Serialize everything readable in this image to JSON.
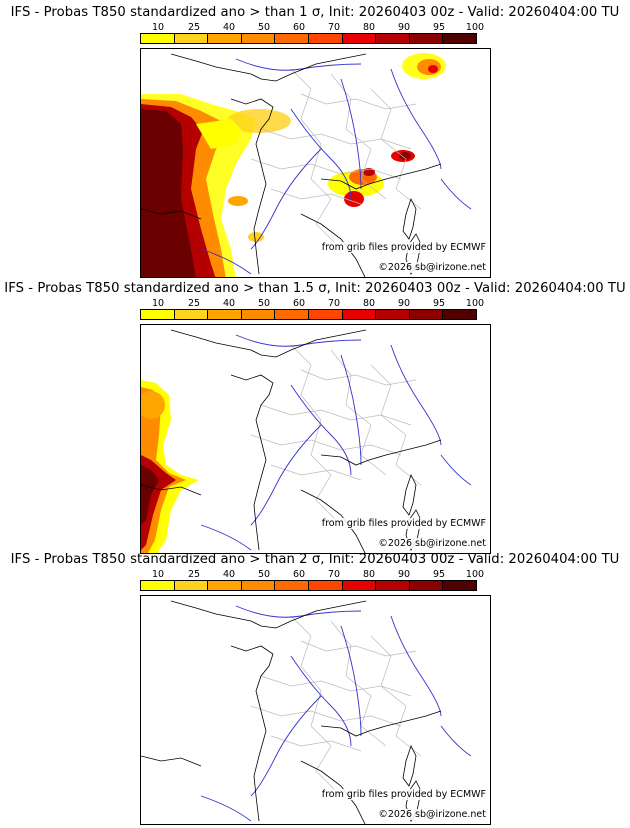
{
  "colorbar": {
    "levels": [
      "10",
      "25",
      "40",
      "50",
      "60",
      "70",
      "80",
      "90",
      "95",
      "100"
    ],
    "colors": [
      "#ffff00",
      "#ffd21e",
      "#ffa500",
      "#ff8c00",
      "#ff6a00",
      "#ff4500",
      "#e60000",
      "#b40000",
      "#8c0000",
      "#500000"
    ]
  },
  "panels": [
    {
      "title": "IFS - Probas T850  standardized ano > than 1 σ, Init: 20260403 00z - Valid: 20260404:00 TU",
      "source": "from grib files provided by ECMWF",
      "copyright": "©2026 sb@irizone.net"
    },
    {
      "title": "IFS - Probas T850  standardized ano > than 1.5 σ, Init: 20260403 00z - Valid: 20260404:00 TU",
      "source": "from grib files provided by ECMWF",
      "copyright": "©2026 sb@irizone.net"
    },
    {
      "title": "IFS - Probas T850  standardized ano > than 2 σ, Init: 20260403 00z - Valid: 20260404:00 TU",
      "source": "from grib files provided by ECMWF",
      "copyright": "©2026 sb@irizone.net"
    }
  ],
  "map_colors": {
    "coast": "#000000",
    "borders": "#bbbbbb",
    "rivers": "#3333cc"
  }
}
